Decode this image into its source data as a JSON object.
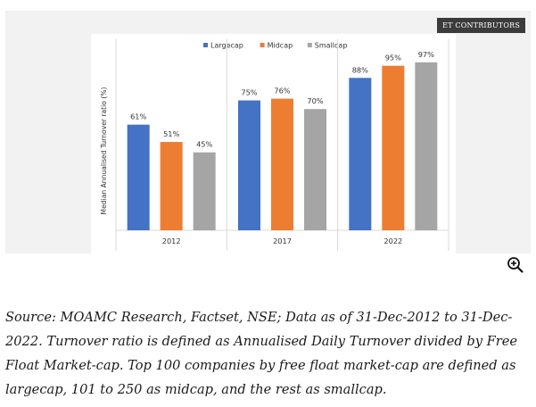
{
  "badge": {
    "label": "ET CONTRIBUTORS"
  },
  "zoom": {
    "icon": "zoom-in-icon"
  },
  "caption": {
    "text": "Source: MOAMC Research, Factset, NSE; Data as of 31-Dec-2012 to 31-Dec-2022. Turnover ratio is defined as Annualised Daily Turnover divided by Free Float Market-cap. Top 100 companies by free float market-cap are defined as largecap, 101 to 250 as midcap, and the rest as smallcap."
  },
  "chart_data": {
    "type": "bar",
    "title": "",
    "ylabel": "Median Annualised Turnover ratio (%)",
    "xlabel": "",
    "categories": [
      "2012",
      "2017",
      "2022"
    ],
    "ylim": [
      0,
      100
    ],
    "legend_position": "top",
    "grid": false,
    "series": [
      {
        "name": "Largecap",
        "color": "#4472c4",
        "values": [
          61,
          75,
          88
        ],
        "labels": [
          "61%",
          "75%",
          "88%"
        ]
      },
      {
        "name": "Midcap",
        "color": "#ed7d31",
        "values": [
          51,
          76,
          95
        ],
        "labels": [
          "51%",
          "76%",
          "95%"
        ]
      },
      {
        "name": "Smallcap",
        "color": "#a5a5a5",
        "values": [
          45,
          70,
          97
        ],
        "labels": [
          "45%",
          "70%",
          "97%"
        ]
      }
    ]
  }
}
